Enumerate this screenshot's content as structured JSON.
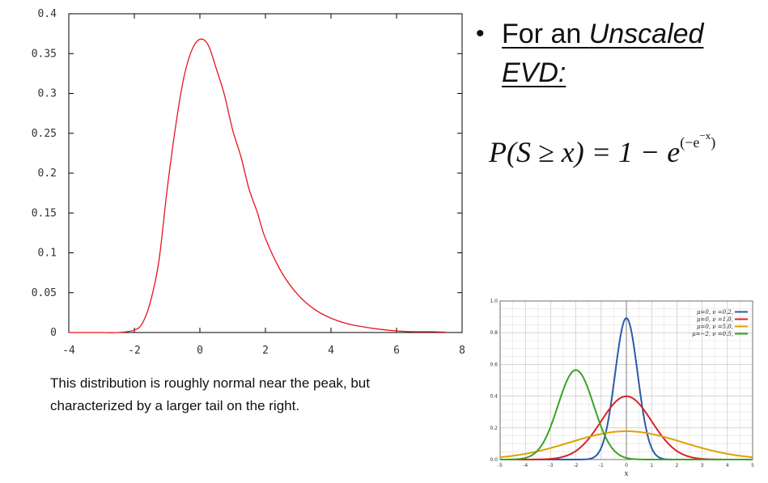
{
  "chart_data": [
    {
      "type": "line",
      "xlim": [
        -4,
        8
      ],
      "ylim": [
        0,
        0.4
      ],
      "x_ticks": [
        "-4",
        "-2",
        "0",
        "2",
        "4",
        "6",
        "8"
      ],
      "y_ticks": [
        "0",
        "0.05",
        "0.1",
        "0.15",
        "0.2",
        "0.25",
        "0.3",
        "0.35",
        "0.4"
      ],
      "grid": false,
      "series": [
        {
          "color": "#e8141b",
          "x": [
            -4,
            -3.5,
            -3,
            -2.5,
            -2,
            -1.75,
            -1.5,
            -1.25,
            -1,
            -0.75,
            -0.5,
            -0.25,
            0,
            0.25,
            0.5,
            0.75,
            1,
            1.25,
            1.5,
            1.75,
            2,
            2.5,
            3,
            3.5,
            4,
            4.5,
            5,
            5.5,
            6,
            6.5,
            7,
            7.5
          ],
          "y": [
            0,
            0,
            0,
            0,
            0.003,
            0.012,
            0.04,
            0.09,
            0.179,
            0.256,
            0.318,
            0.354,
            0.368,
            0.361,
            0.331,
            0.298,
            0.254,
            0.221,
            0.18,
            0.151,
            0.118,
            0.075,
            0.047,
            0.029,
            0.018,
            0.011,
            0.007,
            0.004,
            0.002,
            0.001,
            0.001,
            0.0005
          ]
        }
      ]
    },
    {
      "type": "line",
      "xlim": [
        -5,
        5
      ],
      "ylim": [
        0,
        1.0
      ],
      "x_ticks": [
        "-5",
        "-4",
        "-3",
        "-2",
        "-1",
        "0",
        "1",
        "2",
        "3",
        "4",
        "5"
      ],
      "y_ticks": [
        "0.0",
        "0.2",
        "0.4",
        "0.6",
        "0.8",
        "1.0"
      ],
      "xlabel": "x",
      "grid": true,
      "legend_placement": "top-right",
      "series": [
        {
          "name": "μ=0,  ν =0.2,",
          "color": "#2b5aa8",
          "mu": 0,
          "variance": 0.2
        },
        {
          "name": "μ=0,  ν =1.0,",
          "color": "#d8232a",
          "mu": 0,
          "variance": 1.0
        },
        {
          "name": "μ=0,  ν =5.0,",
          "color": "#e0a000",
          "mu": 0,
          "variance": 5.0
        },
        {
          "name": "μ=−2, ν =0.5,",
          "color": "#3aa324",
          "mu": -2,
          "variance": 0.5
        }
      ]
    }
  ],
  "bullet": {
    "prefix": "For an ",
    "emphasis": "Unscaled",
    "second_line": "EVD:"
  },
  "formula": {
    "lhs": "P(S ≥ x) = 1 − e",
    "exponent_open": "(−e",
    "exponent_inner": "−x",
    "exponent_close": ")"
  },
  "caption": {
    "line1": "This distribution is roughly normal near the peak, but",
    "line2": "characterized by a larger tail on the right."
  }
}
